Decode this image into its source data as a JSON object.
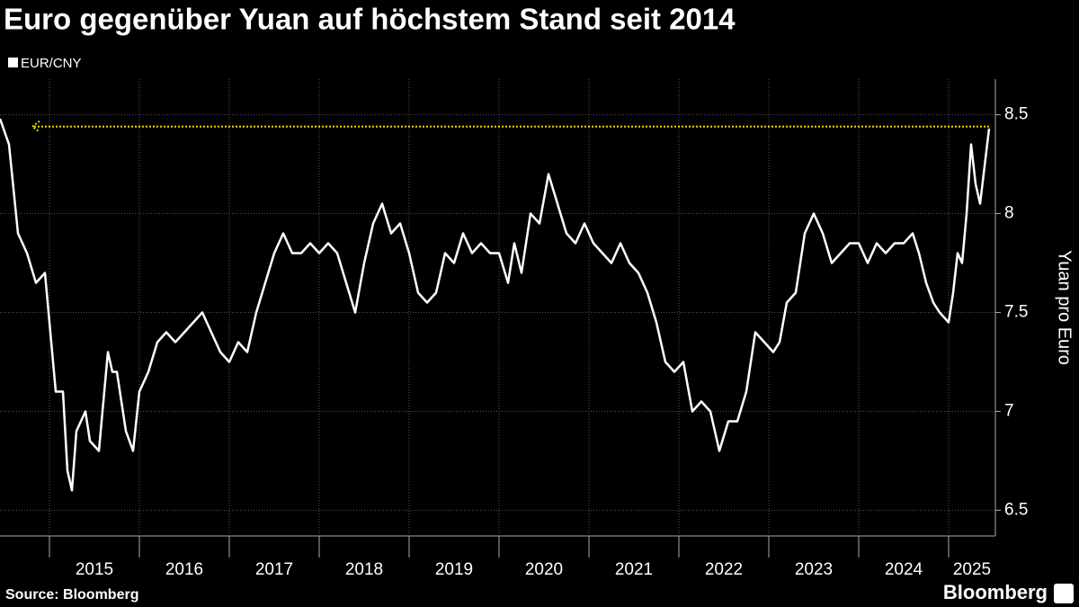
{
  "chart_data": {
    "type": "line",
    "title": "Euro gegenüber Yuan auf höchstem Stand seit 2014",
    "y_axis_label": "Yuan pro Euro",
    "source": "Source: Bloomberg",
    "brand": "Bloomberg",
    "xlim": [
      2014.45,
      2025.45
    ],
    "xticks": [
      2015,
      2016,
      2017,
      2018,
      2019,
      2020,
      2021,
      2022,
      2023,
      2024,
      2025
    ],
    "ylim": [
      6.37,
      8.68
    ],
    "yticks": [
      6.5,
      7.0,
      7.5,
      8.0,
      8.5
    ],
    "grid": true,
    "reference_line": {
      "value": 8.44,
      "color": "#f2d600"
    },
    "x": [
      2014.45,
      2014.55,
      2014.65,
      2014.75,
      2014.85,
      2014.95,
      2015.0,
      2015.07,
      2015.15,
      2015.2,
      2015.25,
      2015.3,
      2015.4,
      2015.45,
      2015.55,
      2015.65,
      2015.7,
      2015.75,
      2015.85,
      2015.93,
      2016.0,
      2016.1,
      2016.2,
      2016.3,
      2016.4,
      2016.5,
      2016.6,
      2016.7,
      2016.8,
      2016.9,
      2017.0,
      2017.1,
      2017.2,
      2017.3,
      2017.4,
      2017.5,
      2017.6,
      2017.7,
      2017.8,
      2017.9,
      2018.0,
      2018.1,
      2018.2,
      2018.3,
      2018.4,
      2018.5,
      2018.6,
      2018.7,
      2018.8,
      2018.9,
      2019.0,
      2019.1,
      2019.2,
      2019.3,
      2019.4,
      2019.5,
      2019.6,
      2019.7,
      2019.8,
      2019.9,
      2020.0,
      2020.1,
      2020.17,
      2020.25,
      2020.35,
      2020.45,
      2020.55,
      2020.65,
      2020.75,
      2020.85,
      2020.95,
      2021.05,
      2021.15,
      2021.25,
      2021.35,
      2021.45,
      2021.55,
      2021.65,
      2021.75,
      2021.85,
      2021.95,
      2022.05,
      2022.15,
      2022.25,
      2022.35,
      2022.45,
      2022.55,
      2022.65,
      2022.75,
      2022.85,
      2022.95,
      2023.05,
      2023.12,
      2023.2,
      2023.3,
      2023.4,
      2023.5,
      2023.6,
      2023.7,
      2023.8,
      2023.9,
      2024.0,
      2024.1,
      2024.2,
      2024.3,
      2024.4,
      2024.5,
      2024.6,
      2024.67,
      2024.75,
      2024.83,
      2024.9,
      2025.0,
      2025.05,
      2025.1,
      2025.15,
      2025.2,
      2025.25,
      2025.3,
      2025.35,
      2025.45
    ],
    "series": [
      {
        "name": "EUR/CNY",
        "color": "#ffffff",
        "values": [
          8.48,
          8.35,
          7.9,
          7.8,
          7.65,
          7.7,
          7.45,
          7.1,
          7.1,
          6.7,
          6.6,
          6.9,
          7.0,
          6.85,
          6.8,
          7.3,
          7.2,
          7.2,
          6.9,
          6.8,
          7.1,
          7.2,
          7.35,
          7.4,
          7.35,
          7.4,
          7.45,
          7.5,
          7.4,
          7.3,
          7.25,
          7.35,
          7.3,
          7.5,
          7.65,
          7.8,
          7.9,
          7.8,
          7.8,
          7.85,
          7.8,
          7.85,
          7.8,
          7.65,
          7.5,
          7.75,
          7.95,
          8.05,
          7.9,
          7.95,
          7.8,
          7.6,
          7.55,
          7.6,
          7.8,
          7.75,
          7.9,
          7.8,
          7.85,
          7.8,
          7.8,
          7.65,
          7.85,
          7.7,
          8.0,
          7.95,
          8.2,
          8.05,
          7.9,
          7.85,
          7.95,
          7.85,
          7.8,
          7.75,
          7.85,
          7.75,
          7.7,
          7.6,
          7.45,
          7.25,
          7.2,
          7.25,
          7.0,
          7.05,
          7.0,
          6.8,
          6.95,
          6.95,
          7.1,
          7.4,
          7.35,
          7.3,
          7.35,
          7.55,
          7.6,
          7.9,
          8.0,
          7.9,
          7.75,
          7.8,
          7.85,
          7.85,
          7.75,
          7.85,
          7.8,
          7.85,
          7.85,
          7.9,
          7.8,
          7.65,
          7.55,
          7.5,
          7.45,
          7.6,
          7.8,
          7.75,
          8.0,
          8.35,
          8.15,
          8.05,
          8.43
        ]
      }
    ]
  }
}
